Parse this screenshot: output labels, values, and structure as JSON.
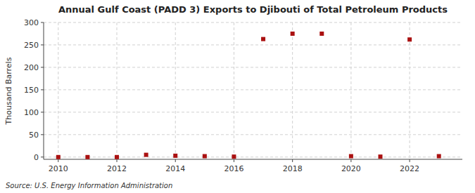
{
  "chart_data": {
    "type": "scatter",
    "title": "Annual Gulf Coast (PADD 3) Exports to Djibouti of Total Petroleum Products",
    "ylabel": "Thousand Barrels",
    "source": "Source: U.S. Energy Information Administration",
    "x": [
      2010,
      2011,
      2012,
      2013,
      2014,
      2015,
      2016,
      2017,
      2018,
      2019,
      2020,
      2021,
      2022,
      2023
    ],
    "values": [
      0,
      0,
      0,
      5,
      3,
      2,
      1,
      263,
      275,
      275,
      2,
      1,
      262,
      2
    ],
    "color": "#aa1111",
    "marker": "square",
    "xlim": [
      2009.5,
      2023.8
    ],
    "ylim": [
      -5,
      300
    ],
    "xticks": [
      2010,
      2012,
      2014,
      2016,
      2018,
      2020,
      2022
    ],
    "yticks": [
      0,
      50,
      100,
      150,
      200,
      250,
      300
    ],
    "grid": true
  }
}
